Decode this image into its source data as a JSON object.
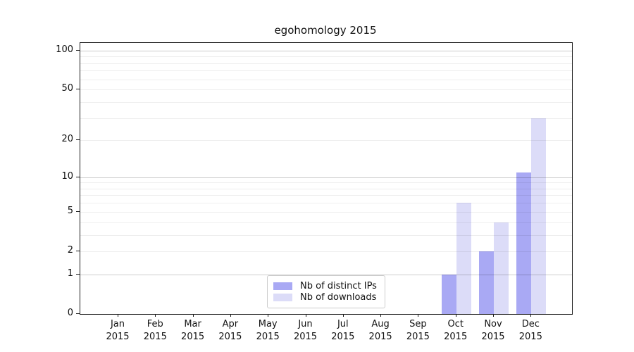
{
  "title": "egohomology 2015",
  "chart_data": {
    "type": "bar",
    "title": "egohomology 2015",
    "categories": [
      "Jan 2015",
      "Feb 2015",
      "Mar 2015",
      "Apr 2015",
      "May 2015",
      "Jun 2015",
      "Jul 2015",
      "Aug 2015",
      "Sep 2015",
      "Oct 2015",
      "Nov 2015",
      "Dec 2015"
    ],
    "series": [
      {
        "name": "Nb of distinct IPs",
        "color": "#a9a9f4",
        "values": [
          0,
          0,
          0,
          0,
          0,
          0,
          0,
          0,
          0,
          1,
          2,
          11
        ]
      },
      {
        "name": "Nb of downloads",
        "color": "#dcdcf8",
        "values": [
          0,
          0,
          0,
          0,
          0,
          0,
          0,
          0,
          0,
          6,
          4,
          30
        ]
      }
    ],
    "xlabel": "",
    "ylabel": "",
    "yscale": "log1p",
    "ylim": [
      0,
      115
    ],
    "y_tick_labels": [
      0,
      1,
      2,
      5,
      10,
      20,
      50,
      100
    ],
    "y_major_gridlines": [
      1,
      10,
      100
    ],
    "y_minor_gridlines": [
      2,
      3,
      4,
      5,
      6,
      7,
      8,
      9,
      20,
      30,
      40,
      50,
      60,
      70,
      80,
      90
    ],
    "grid": "horizontal",
    "legend_position": "lower center"
  },
  "colors": {
    "background": "#ffffff",
    "spine": "#1c1c1c",
    "bar_distinct_ips": "#a9a9f4",
    "bar_downloads": "#dcdcf8",
    "legend_border": "#cccccc"
  }
}
